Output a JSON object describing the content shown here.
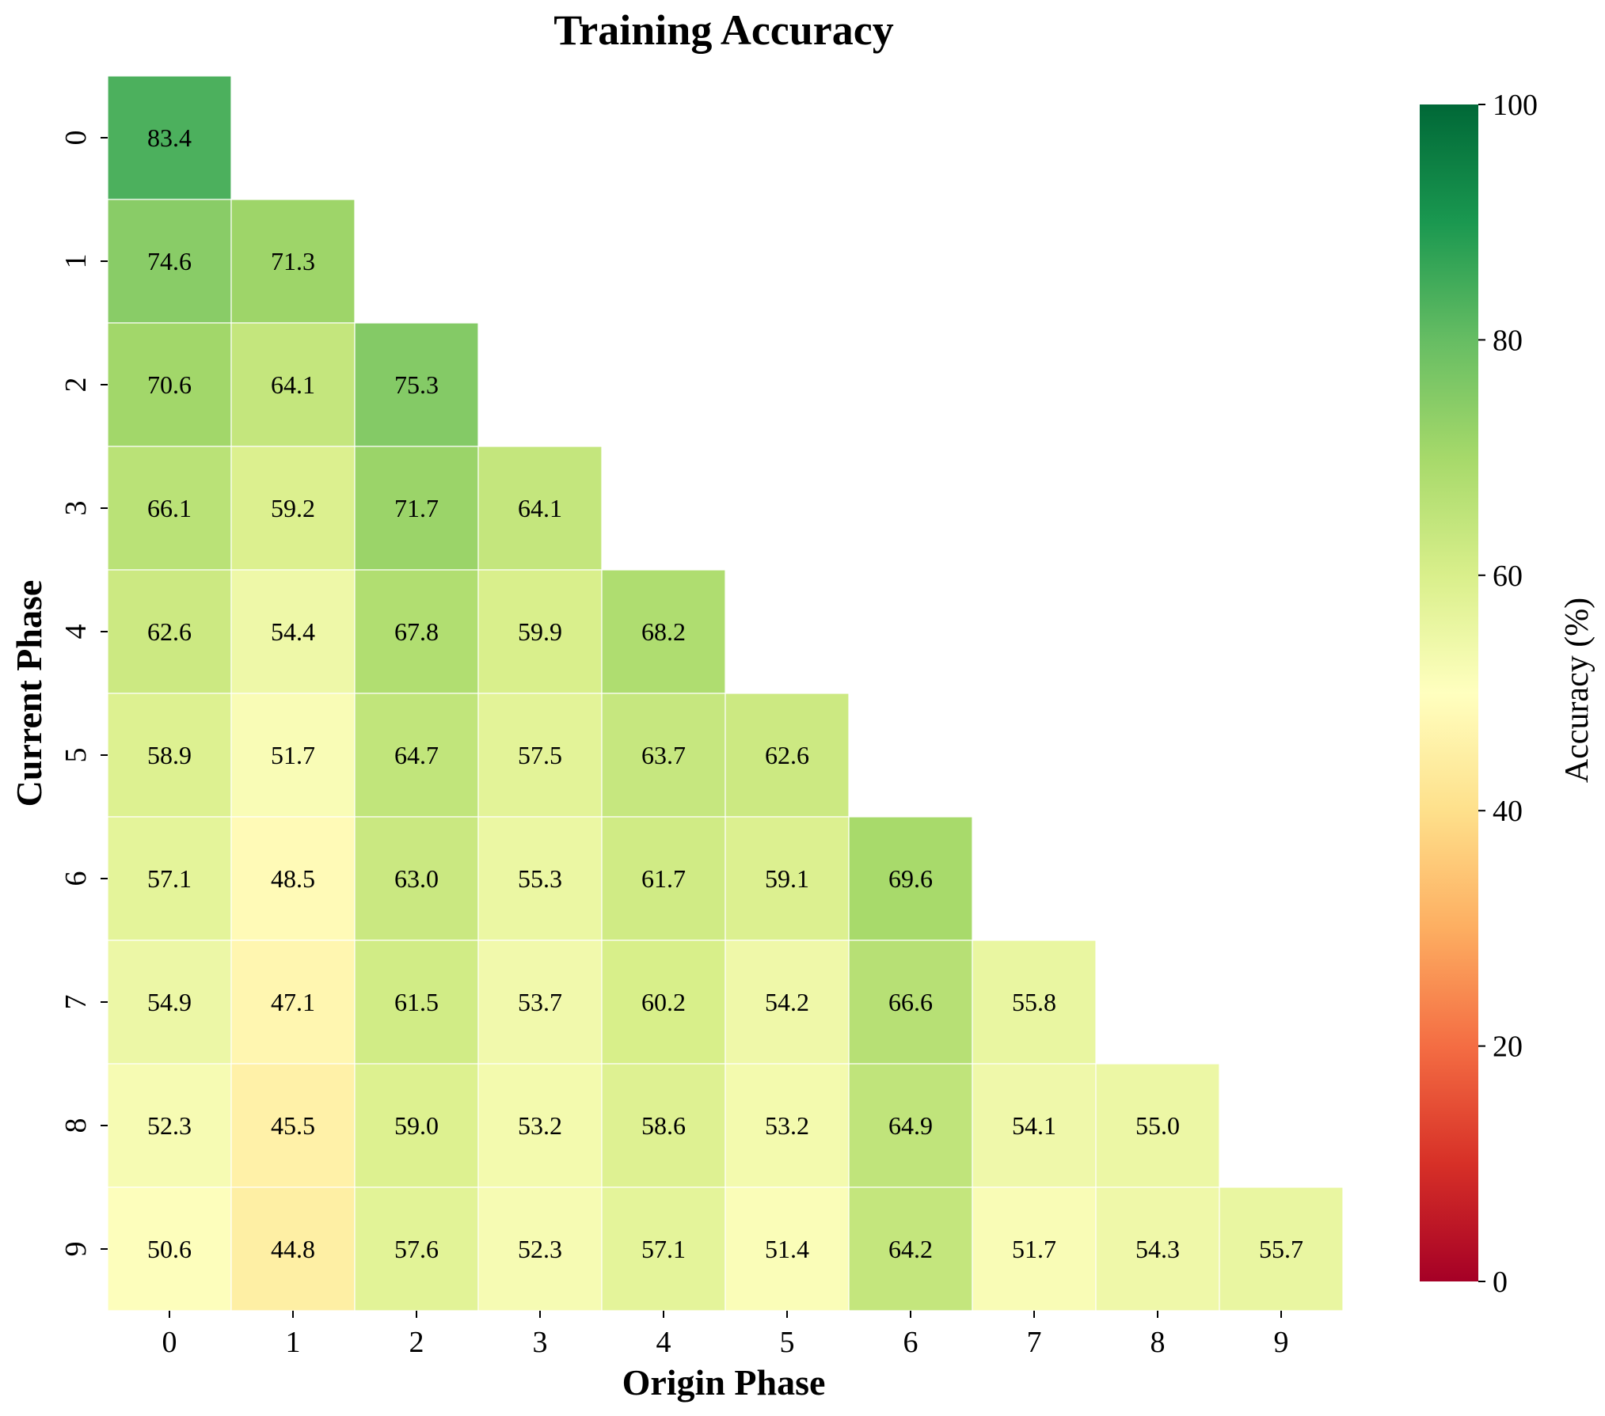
{
  "chart_data": {
    "type": "heatmap",
    "title": "Training Accuracy",
    "xlabel": "Origin Phase",
    "ylabel": "Current Phase",
    "x_categories": [
      "0",
      "1",
      "2",
      "3",
      "4",
      "5",
      "6",
      "7",
      "8",
      "9"
    ],
    "y_categories": [
      "0",
      "1",
      "2",
      "3",
      "4",
      "5",
      "6",
      "7",
      "8",
      "9"
    ],
    "values": [
      [
        83.4
      ],
      [
        74.6,
        71.3
      ],
      [
        70.6,
        64.1,
        75.3
      ],
      [
        66.1,
        59.2,
        71.7,
        64.1
      ],
      [
        62.6,
        54.4,
        67.8,
        59.9,
        68.2
      ],
      [
        58.9,
        51.7,
        64.7,
        57.5,
        63.7,
        62.6
      ],
      [
        57.1,
        48.5,
        63.0,
        55.3,
        61.7,
        59.1,
        69.6
      ],
      [
        54.9,
        47.1,
        61.5,
        53.7,
        60.2,
        54.2,
        66.6,
        55.8
      ],
      [
        52.3,
        45.5,
        59.0,
        53.2,
        58.6,
        53.2,
        64.9,
        54.1,
        55.0
      ],
      [
        50.6,
        44.8,
        57.6,
        52.3,
        57.1,
        51.4,
        64.2,
        51.7,
        54.3,
        55.7
      ]
    ],
    "masked": "upper triangle (origin phase > current phase) is empty",
    "colorbar": {
      "label": "Accuracy (%)",
      "range": [
        0,
        100
      ],
      "ticks": [
        "0",
        "20",
        "40",
        "60",
        "80",
        "100"
      ],
      "colormap": "RdYlGn",
      "colormap_stops": [
        "#a50026",
        "#d73027",
        "#f46d43",
        "#fdae61",
        "#fee08b",
        "#ffffbf",
        "#d9ef8b",
        "#a6d96a",
        "#66bd63",
        "#1a9850",
        "#006837"
      ]
    },
    "grid": false
  }
}
